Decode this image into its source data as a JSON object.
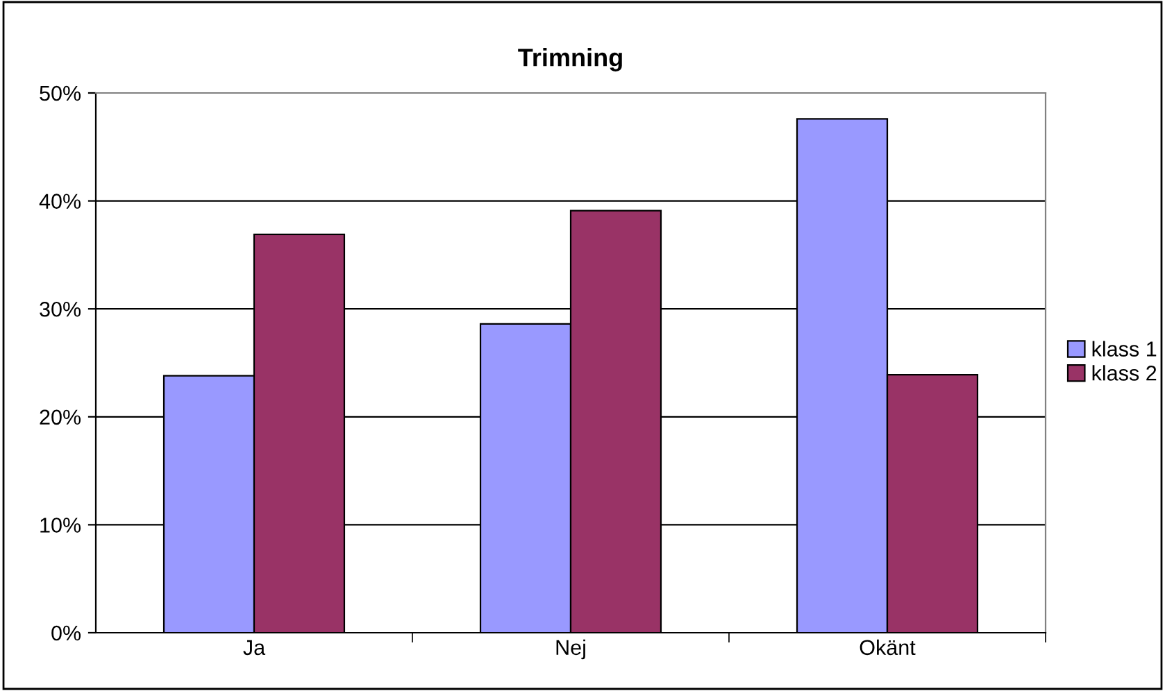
{
  "chart_data": {
    "type": "bar",
    "title": "Trimning",
    "categories": [
      "Ja",
      "Nej",
      "Okänt"
    ],
    "series": [
      {
        "name": "klass 1",
        "color": "#9999ff",
        "values": [
          23.8,
          28.6,
          47.6
        ]
      },
      {
        "name": "klass 2",
        "color": "#993366",
        "values": [
          36.9,
          39.1,
          23.9
        ]
      }
    ],
    "ylim": [
      0,
      50
    ],
    "yticks": [
      {
        "value": 0,
        "label": "0%"
      },
      {
        "value": 10,
        "label": "10%"
      },
      {
        "value": 20,
        "label": "20%"
      },
      {
        "value": 30,
        "label": "30%"
      },
      {
        "value": 40,
        "label": "40%"
      },
      {
        "value": 50,
        "label": "50%"
      }
    ],
    "grid": "y",
    "legend": "right"
  }
}
